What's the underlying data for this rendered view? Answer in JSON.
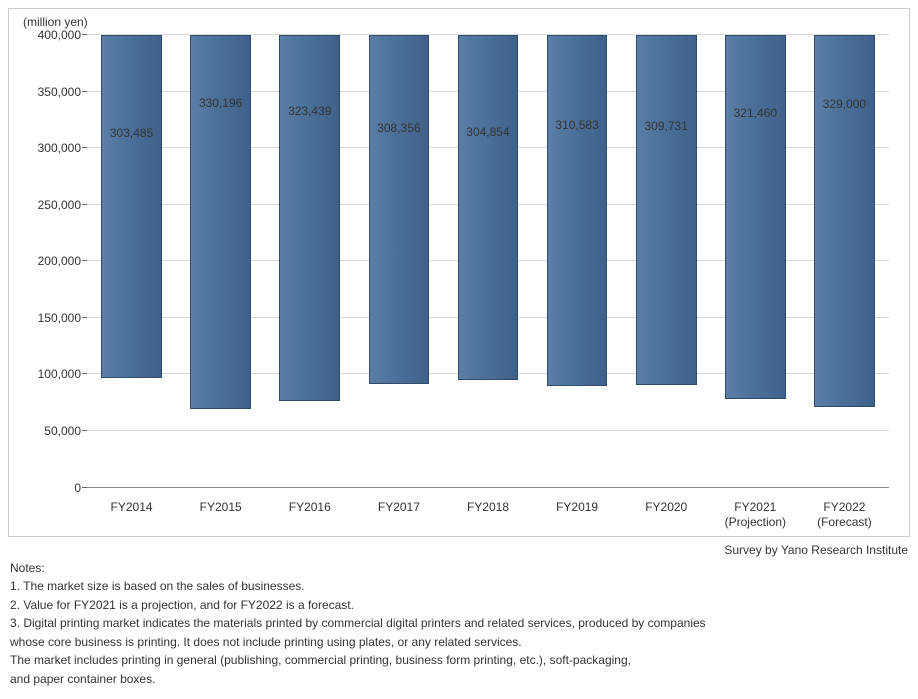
{
  "chart": {
    "type": "bar",
    "unit_label": "(million yen)",
    "background_color": "#ffffff",
    "border_color": "#cccccc",
    "grid_color": "#d9d9d9",
    "baseline_color": "#888888",
    "bar_fill_color": "#4a6f98",
    "bar_border_color": "#2f4b6b",
    "label_color": "#333333",
    "label_fontsize": 12,
    "value_label_fontsize": 12,
    "ylim": [
      0,
      400000
    ],
    "ytick_step": 50000,
    "yticks": [
      {
        "v": 0,
        "label": "0"
      },
      {
        "v": 50000,
        "label": "50,000"
      },
      {
        "v": 100000,
        "label": "100,000"
      },
      {
        "v": 150000,
        "label": "150,000"
      },
      {
        "v": 200000,
        "label": "200,000"
      },
      {
        "v": 250000,
        "label": "250,000"
      },
      {
        "v": 300000,
        "label": "300,000"
      },
      {
        "v": 350000,
        "label": "350,000"
      },
      {
        "v": 400000,
        "label": "400,000"
      }
    ],
    "bar_width": 0.68,
    "bars": [
      {
        "category": "FY2014",
        "sub": "",
        "value": 303485,
        "value_label": "303,485"
      },
      {
        "category": "FY2015",
        "sub": "",
        "value": 330196,
        "value_label": "330,196"
      },
      {
        "category": "FY2016",
        "sub": "",
        "value": 323439,
        "value_label": "323,439"
      },
      {
        "category": "FY2017",
        "sub": "",
        "value": 308356,
        "value_label": "308,356"
      },
      {
        "category": "FY2018",
        "sub": "",
        "value": 304854,
        "value_label": "304,854"
      },
      {
        "category": "FY2019",
        "sub": "",
        "value": 310583,
        "value_label": "310,583"
      },
      {
        "category": "FY2020",
        "sub": "",
        "value": 309731,
        "value_label": "309,731"
      },
      {
        "category": "FY2021",
        "sub": "(Projection)",
        "value": 321460,
        "value_label": "321,460"
      },
      {
        "category": "FY2022",
        "sub": "(Forecast)",
        "value": 329000,
        "value_label": "329,000"
      }
    ]
  },
  "credit": "Survey by Yano Research Institute",
  "notes": {
    "heading": "Notes:",
    "lines": [
      "1. The market size is based on the sales of businesses.",
      "2. Value for FY2021 is a projection, and for FY2022 is a forecast.",
      "3. Digital printing market indicates the materials printed by commercial digital printers and related services, produced by companies",
      "    whose core business is printing. It does not include printing using plates, or any related services.",
      "    The market includes printing in general (publishing, commercial printing, business form printing, etc.), soft-packaging,",
      "    and paper container boxes."
    ]
  }
}
